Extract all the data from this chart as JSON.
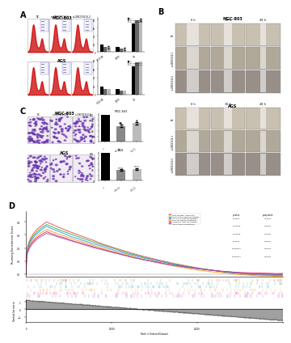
{
  "panel_A_title_top": "MGC-803",
  "panel_A_title_bottom": "AGS",
  "panel_B_title": "MGC-803",
  "panel_B_title2": "AGS",
  "panel_C_title_top": "MGC-803",
  "panel_C_title_bottom": "AGS",
  "panel_D_ylabel_top": "Running Enrichment Score",
  "panel_D_ylabel_bottom": "Ranked list metric",
  "panel_D_xlabel": "Rank in Ordered Dataset",
  "gsea_pathways": [
    "ECM-receptor interaction",
    "PPAR-alpha signaling pathway",
    "Cell cycle signaling pathway",
    "PI3K-Akt signaling pathway",
    "Apoptosis signaling pathway",
    "Insulin signaling pathway"
  ],
  "gsea_colors": [
    "#e74c3c",
    "#27ae60",
    "#3498db",
    "#f39c12",
    "#e91e63",
    "#9b59b6"
  ],
  "gsea_pvalues": [
    "0.00005",
    "0.000045",
    "0.000045",
    "0.00005",
    "0.0000517",
    "0.0000517"
  ],
  "gsea_qvalues": [
    "0.00442",
    "0.01441",
    "0.01442",
    "0.01442",
    "0.01442",
    "0.01442"
  ],
  "bg_color": "#ffffff"
}
